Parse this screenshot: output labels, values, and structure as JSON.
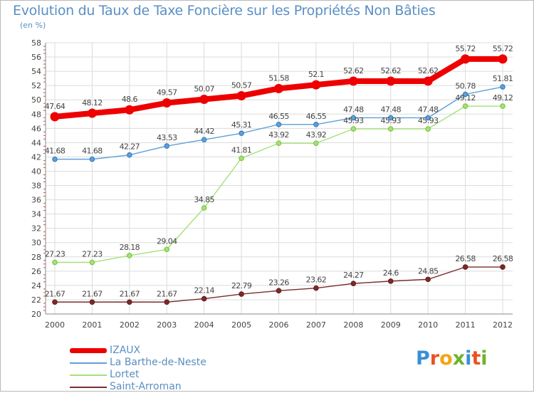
{
  "title": "Evolution du Taux de Taxe Foncière sur les Propriétés Non Bâties",
  "unit": "(en %)",
  "logo": {
    "text": "Proxiti",
    "colors": [
      "#3a8fd6",
      "#e9541f",
      "#f2a516",
      "#6ab42d",
      "#3a8fd6",
      "#e9541f",
      "#6ab42d"
    ]
  },
  "chart_data": {
    "type": "line",
    "title": "Evolution du Taux de Taxe Foncière sur les Propriétés Non Bâties",
    "ylabel": "(en %)",
    "xlabel": "",
    "ylim": [
      20,
      58
    ],
    "yticks": [
      20,
      22,
      24,
      26,
      28,
      30,
      32,
      34,
      36,
      38,
      40,
      42,
      44,
      46,
      48,
      50,
      52,
      54,
      56,
      58
    ],
    "categories": [
      "2000",
      "2001",
      "2002",
      "2003",
      "2004",
      "2005",
      "2006",
      "2007",
      "2008",
      "2009",
      "2010",
      "2011",
      "2012"
    ],
    "series": [
      {
        "name": "IZAUX",
        "color": "#ee0000",
        "values": [
          47.64,
          48.12,
          48.6,
          49.57,
          50.07,
          50.57,
          51.58,
          52.1,
          52.62,
          52.62,
          52.62,
          55.72,
          55.72
        ],
        "labels": [
          "47.64",
          "48.12",
          "48.6",
          "49.57",
          "50.07",
          "50.57",
          "51.58",
          "52.1",
          "52.62",
          "52.62",
          "52.62",
          "55.72",
          "55.72"
        ]
      },
      {
        "name": "La Barthe-de-Neste",
        "color": "#5fa0d8",
        "marker": "#3a7fc0",
        "values": [
          41.68,
          41.68,
          42.27,
          43.53,
          44.42,
          45.31,
          46.55,
          46.55,
          47.48,
          47.48,
          47.48,
          50.78,
          51.81
        ],
        "labels": [
          "41.68",
          "41.68",
          "42.27",
          "43.53",
          "44.42",
          "45.31",
          "46.55",
          "46.55",
          "47.48",
          "47.48",
          "47.48",
          "50.78",
          "51.81"
        ]
      },
      {
        "name": "Lortet",
        "color": "#a6e07a",
        "marker": "#7cc83f",
        "values": [
          27.23,
          27.23,
          28.18,
          29.04,
          34.85,
          41.81,
          43.92,
          43.92,
          45.93,
          45.93,
          45.93,
          49.12,
          49.12
        ],
        "labels": [
          "27.23",
          "27.23",
          "28.18",
          "29.04",
          "34.85",
          "41.81",
          "43.92",
          "43.92",
          "45.93",
          "45.93",
          "45.93",
          "49.12",
          "49.12"
        ]
      },
      {
        "name": "Saint-Arroman",
        "color": "#7a2c2c",
        "marker": "#6a1c1c",
        "values": [
          21.67,
          21.67,
          21.67,
          21.67,
          22.14,
          22.79,
          23.26,
          23.62,
          24.27,
          24.6,
          24.85,
          26.58,
          26.58
        ],
        "labels": [
          "21.67",
          "21.67",
          "21.67",
          "21.67",
          "22.14",
          "22.79",
          "23.26",
          "23.62",
          "24.27",
          "24.6",
          "24.85",
          "26.58",
          "26.58"
        ]
      }
    ],
    "grid": true,
    "legend": "bottom-left"
  }
}
